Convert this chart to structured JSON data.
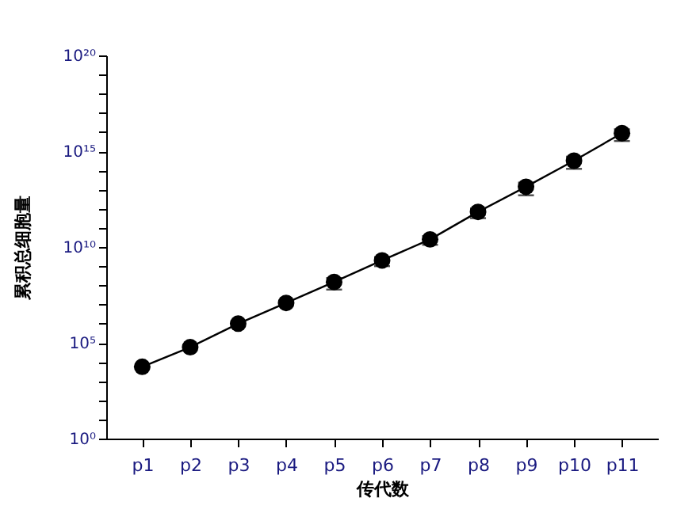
{
  "chart_data": {
    "type": "line",
    "xlabel": "传代数",
    "ylabel": "累积总细胞量",
    "categories": [
      "p1",
      "p2",
      "p3",
      "p4",
      "p5",
      "p6",
      "p7",
      "p8",
      "p9",
      "p10",
      "p11"
    ],
    "series": [
      {
        "color": "#000000",
        "values": [
          5600,
          59000,
          1000000,
          12000000,
          150000000,
          2000000000,
          25000000000,
          680000000000,
          14000000000000,
          320000000000000,
          8700000000000000
        ],
        "errors": [
          null,
          null,
          null,
          null,
          90000000,
          1000000000,
          12000000000,
          360000000000,
          9000000000000,
          200000000000000,
          5300000000000000
        ]
      }
    ],
    "log": "y",
    "ylim": [
      1,
      1e+20
    ],
    "yticks": [
      {
        "value": 1,
        "label": "10⁰"
      },
      {
        "value": 10,
        "label": null
      },
      {
        "value": 100,
        "label": null
      },
      {
        "value": 1000,
        "label": null
      },
      {
        "value": 10000,
        "label": null
      },
      {
        "value": 100000,
        "label": "10⁵"
      },
      {
        "value": 1000000.0,
        "label": null
      },
      {
        "value": 10000000.0,
        "label": null
      },
      {
        "value": 100000000.0,
        "label": null
      },
      {
        "value": 1000000000.0,
        "label": null
      },
      {
        "value": 10000000000.0,
        "label": "10¹⁰"
      },
      {
        "value": 100000000000.0,
        "label": null
      },
      {
        "value": 1000000000000.0,
        "label": null
      },
      {
        "value": 10000000000000.0,
        "label": null
      },
      {
        "value": 100000000000000.0,
        "label": null
      },
      {
        "value": 1000000000000000.0,
        "label": "10¹⁵"
      },
      {
        "value": 1e+16,
        "label": null
      },
      {
        "value": 1e+17,
        "label": null
      },
      {
        "value": 1e+18,
        "label": null
      },
      {
        "value": 1e+19,
        "label": null
      },
      {
        "value": 1e+20,
        "label": "10²⁰"
      }
    ],
    "marker": "circle",
    "line_style": "solid"
  }
}
